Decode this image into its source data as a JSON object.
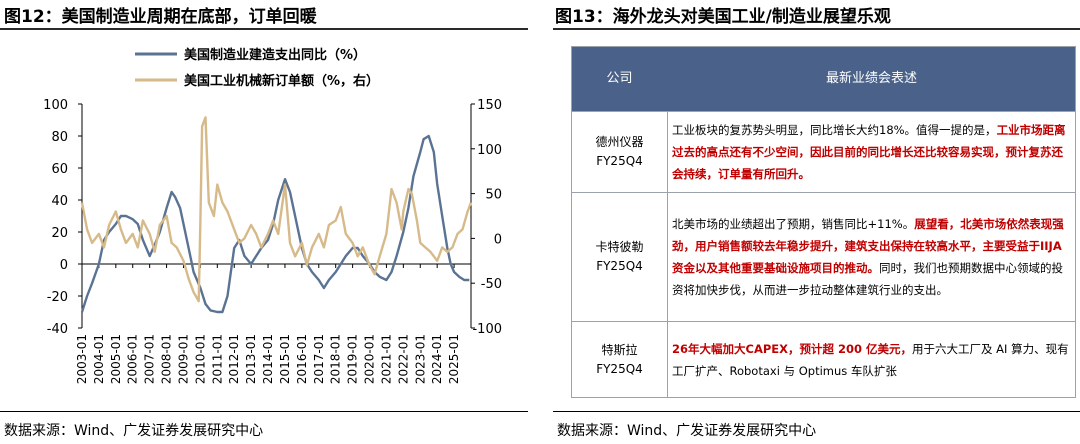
{
  "left": {
    "title": "图12：美国制造业周期在底部，订单回暖",
    "source": "数据来源：Wind、广发证券发展研究中心"
  },
  "right": {
    "title": "图13：海外龙头对美国工业/制造业展望乐观",
    "source": "数据来源：Wind、广发证券发展研究中心",
    "table": {
      "headers": [
        "公司",
        "最新业绩会表述"
      ],
      "rows": [
        {
          "company": "德州仪器",
          "period": "FY25Q4",
          "segments": [
            {
              "text": "工业板块的复苏势头明显，同比增长大约18%。值得一提的是，",
              "highlight": false
            },
            {
              "text": "工业市场距离过去的高点还有不少空间，因此目前的同比增长还比较容易实现，预计复苏还会持续，订单量有所回升。",
              "highlight": true
            }
          ]
        },
        {
          "company": "卡特彼勒",
          "period": "FY25Q4",
          "segments": [
            {
              "text": "北美市场的业绩超出了预期，销售同比+11%。",
              "highlight": false
            },
            {
              "text": "展望看，北美市场依然表现强劲，用户销售额较去年稳步提升，建筑支出保持在较高水平，主要受益于IIJA资金以及其他重要基础设施项目的推动。",
              "highlight": true
            },
            {
              "text": "同时，我们也预期数据中心领域的投资将加快步伐，从而进一步拉动整体建筑行业的支出。",
              "highlight": false
            }
          ]
        },
        {
          "company": "特斯拉",
          "period": "FY25Q4",
          "segments": [
            {
              "text": "26年大幅加大CAPEX，预计超 200 亿美元，",
              "highlight": true
            },
            {
              "text": "用于六大工厂及 AI 算力、现有工厂扩产、Robotaxi 与 Optimus 车队扩张",
              "highlight": false
            }
          ]
        }
      ]
    }
  },
  "colors": {
    "series1": "#5b7393",
    "series2": "#d6ba8a",
    "header_bg": "#4a6189",
    "highlight": "#c00000"
  },
  "chart_data": {
    "type": "line",
    "title": "",
    "x_tick_labels": [
      "2003-01",
      "2004-01",
      "2005-01",
      "2006-01",
      "2007-01",
      "2008-01",
      "2009-01",
      "2010-01",
      "2011-01",
      "2012-01",
      "2013-01",
      "2014-01",
      "2015-01",
      "2016-01",
      "2017-01",
      "2018-01",
      "2019-01",
      "2020-01",
      "2021-01",
      "2022-01",
      "2023-01",
      "2024-01",
      "2025-01"
    ],
    "x_range": [
      2003.0,
      2026.0
    ],
    "y_left": {
      "lim": [
        -40,
        100
      ],
      "ticks": [
        -40,
        -20,
        0,
        20,
        40,
        60,
        80,
        100
      ]
    },
    "y_right": {
      "lim": [
        -100,
        150
      ],
      "ticks": [
        -100,
        -50,
        0,
        50,
        100,
        150
      ]
    },
    "series": [
      {
        "name": "美国制造业建造支出同比（%）",
        "axis": "left",
        "points": [
          [
            2003.0,
            -30
          ],
          [
            2003.3,
            -20
          ],
          [
            2003.6,
            -12
          ],
          [
            2004.0,
            0
          ],
          [
            2004.3,
            15
          ],
          [
            2004.6,
            20
          ],
          [
            2005.0,
            25
          ],
          [
            2005.3,
            30
          ],
          [
            2005.6,
            30
          ],
          [
            2006.0,
            28
          ],
          [
            2006.3,
            25
          ],
          [
            2006.6,
            15
          ],
          [
            2007.0,
            5
          ],
          [
            2007.3,
            12
          ],
          [
            2007.6,
            20
          ],
          [
            2008.0,
            35
          ],
          [
            2008.3,
            45
          ],
          [
            2008.5,
            42
          ],
          [
            2008.8,
            35
          ],
          [
            2009.0,
            25
          ],
          [
            2009.3,
            10
          ],
          [
            2009.6,
            -5
          ],
          [
            2010.0,
            -15
          ],
          [
            2010.3,
            -25
          ],
          [
            2010.6,
            -29
          ],
          [
            2011.0,
            -30
          ],
          [
            2011.3,
            -30
          ],
          [
            2011.6,
            -20
          ],
          [
            2012.0,
            10
          ],
          [
            2012.3,
            15
          ],
          [
            2012.6,
            5
          ],
          [
            2013.0,
            0
          ],
          [
            2013.3,
            5
          ],
          [
            2013.6,
            10
          ],
          [
            2014.0,
            15
          ],
          [
            2014.3,
            25
          ],
          [
            2014.6,
            40
          ],
          [
            2015.0,
            53
          ],
          [
            2015.3,
            45
          ],
          [
            2015.6,
            30
          ],
          [
            2016.0,
            10
          ],
          [
            2016.3,
            0
          ],
          [
            2016.6,
            -5
          ],
          [
            2017.0,
            -10
          ],
          [
            2017.3,
            -15
          ],
          [
            2017.6,
            -10
          ],
          [
            2018.0,
            -5
          ],
          [
            2018.3,
            0
          ],
          [
            2018.6,
            5
          ],
          [
            2019.0,
            10
          ],
          [
            2019.3,
            10
          ],
          [
            2019.6,
            5
          ],
          [
            2020.0,
            0
          ],
          [
            2020.3,
            -5
          ],
          [
            2020.6,
            -8
          ],
          [
            2021.0,
            -10
          ],
          [
            2021.3,
            -5
          ],
          [
            2021.6,
            5
          ],
          [
            2022.0,
            20
          ],
          [
            2022.3,
            35
          ],
          [
            2022.6,
            55
          ],
          [
            2023.0,
            70
          ],
          [
            2023.2,
            78
          ],
          [
            2023.5,
            80
          ],
          [
            2023.8,
            70
          ],
          [
            2024.0,
            50
          ],
          [
            2024.3,
            30
          ],
          [
            2024.6,
            10
          ],
          [
            2024.8,
            0
          ],
          [
            2025.0,
            -5
          ],
          [
            2025.3,
            -8
          ],
          [
            2025.6,
            -10
          ],
          [
            2025.9,
            -10
          ]
        ]
      },
      {
        "name": "美国工业机械新订单额（%，右）",
        "axis": "right",
        "points": [
          [
            2003.0,
            40
          ],
          [
            2003.3,
            10
          ],
          [
            2003.6,
            -5
          ],
          [
            2004.0,
            5
          ],
          [
            2004.3,
            -10
          ],
          [
            2004.6,
            15
          ],
          [
            2005.0,
            30
          ],
          [
            2005.3,
            10
          ],
          [
            2005.6,
            -5
          ],
          [
            2006.0,
            5
          ],
          [
            2006.3,
            -10
          ],
          [
            2006.6,
            20
          ],
          [
            2007.0,
            5
          ],
          [
            2007.3,
            -15
          ],
          [
            2007.6,
            15
          ],
          [
            2008.0,
            25
          ],
          [
            2008.3,
            -5
          ],
          [
            2008.6,
            -10
          ],
          [
            2009.0,
            -25
          ],
          [
            2009.3,
            -45
          ],
          [
            2009.6,
            -60
          ],
          [
            2009.9,
            -70
          ],
          [
            2010.0,
            20
          ],
          [
            2010.1,
            125
          ],
          [
            2010.3,
            135
          ],
          [
            2010.5,
            40
          ],
          [
            2010.8,
            25
          ],
          [
            2011.0,
            60
          ],
          [
            2011.3,
            40
          ],
          [
            2011.6,
            30
          ],
          [
            2012.0,
            10
          ],
          [
            2012.3,
            -5
          ],
          [
            2012.6,
            0
          ],
          [
            2013.0,
            15
          ],
          [
            2013.3,
            5
          ],
          [
            2013.6,
            -10
          ],
          [
            2014.0,
            5
          ],
          [
            2014.3,
            20
          ],
          [
            2014.6,
            5
          ],
          [
            2015.0,
            60
          ],
          [
            2015.3,
            -5
          ],
          [
            2015.6,
            -20
          ],
          [
            2016.0,
            -5
          ],
          [
            2016.3,
            -30
          ],
          [
            2016.6,
            -10
          ],
          [
            2017.0,
            5
          ],
          [
            2017.3,
            -10
          ],
          [
            2017.6,
            15
          ],
          [
            2018.0,
            20
          ],
          [
            2018.3,
            35
          ],
          [
            2018.6,
            5
          ],
          [
            2019.0,
            -5
          ],
          [
            2019.3,
            -20
          ],
          [
            2019.6,
            -10
          ],
          [
            2020.0,
            -30
          ],
          [
            2020.3,
            -40
          ],
          [
            2020.6,
            -20
          ],
          [
            2021.0,
            5
          ],
          [
            2021.3,
            55
          ],
          [
            2021.6,
            40
          ],
          [
            2021.9,
            10
          ],
          [
            2022.0,
            30
          ],
          [
            2022.3,
            55
          ],
          [
            2022.5,
            50
          ],
          [
            2022.8,
            20
          ],
          [
            2023.0,
            -5
          ],
          [
            2023.3,
            -10
          ],
          [
            2023.6,
            -15
          ],
          [
            2024.0,
            -25
          ],
          [
            2024.3,
            -10
          ],
          [
            2024.6,
            -15
          ],
          [
            2024.9,
            -10
          ],
          [
            2025.2,
            5
          ],
          [
            2025.5,
            10
          ],
          [
            2025.8,
            30
          ],
          [
            2026.0,
            40
          ]
        ]
      }
    ]
  }
}
